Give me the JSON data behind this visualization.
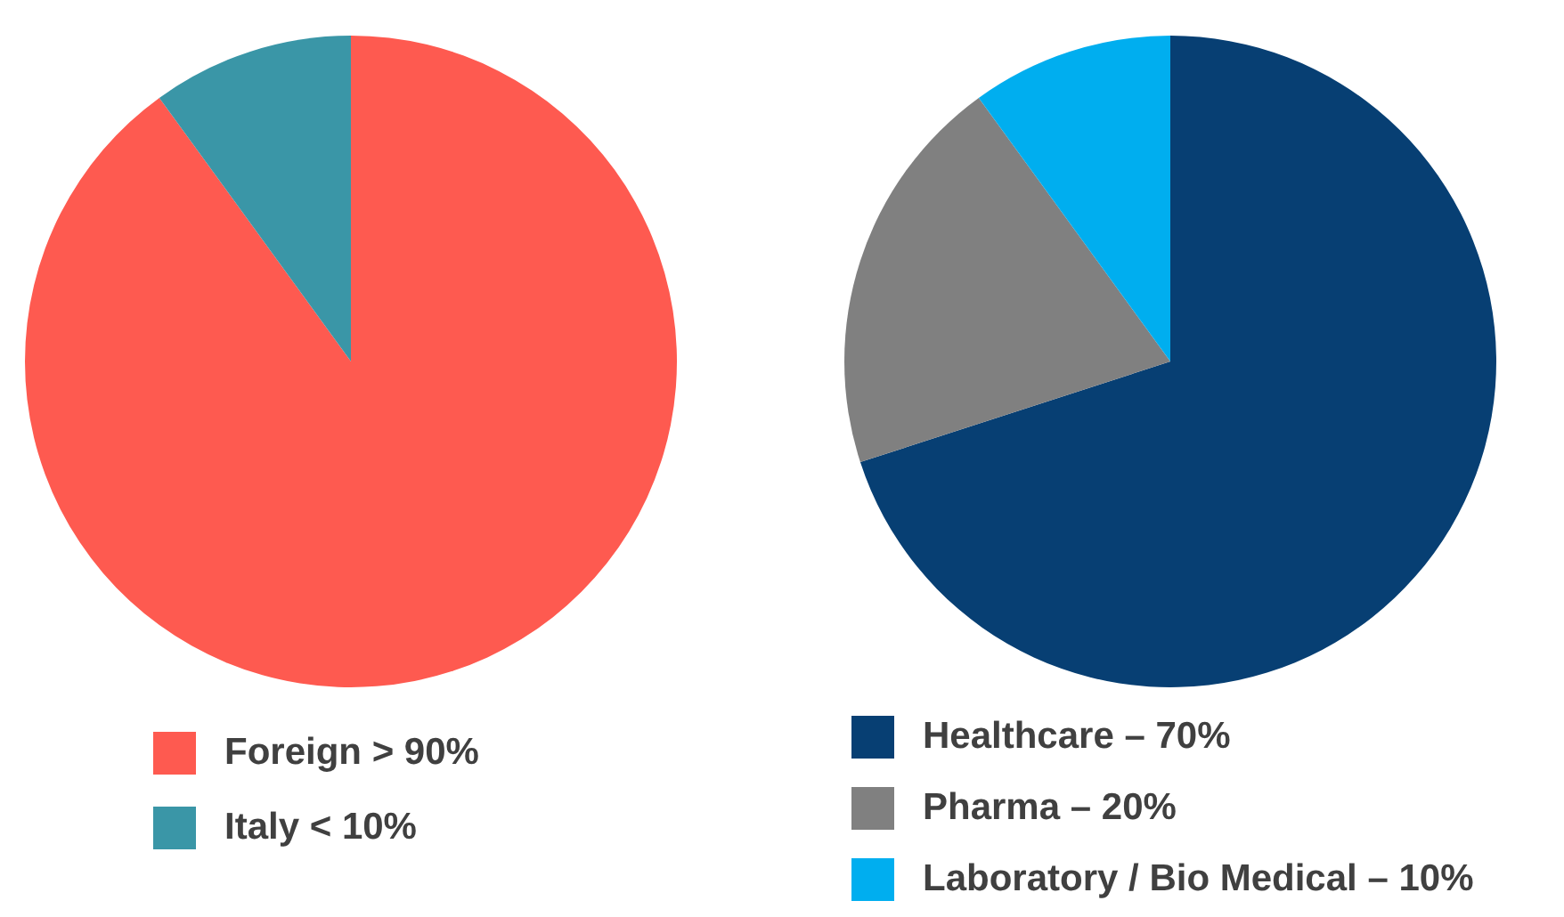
{
  "chart_data": [
    {
      "type": "pie",
      "categories": [
        "Foreign > 90%",
        "Italy < 10%"
      ],
      "values": [
        90,
        10
      ],
      "colors": [
        "#fe5a50",
        "#3a96a7"
      ],
      "legend": "bottom"
    },
    {
      "type": "pie",
      "categories": [
        "Healthcare – 70%",
        "Pharma – 20%",
        "Laboratory / Bio Medical – 10%"
      ],
      "values": [
        70,
        20,
        10
      ],
      "colors": [
        "#073f73",
        "#808080",
        "#00aeef"
      ],
      "legend": "bottom"
    }
  ]
}
